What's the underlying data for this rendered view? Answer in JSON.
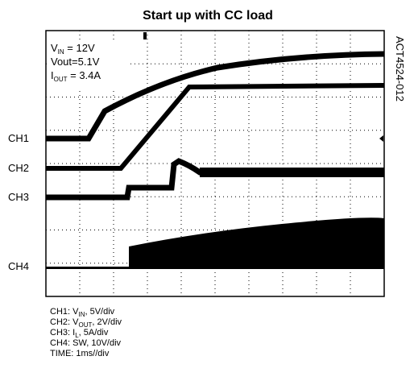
{
  "title": "Start up with CC load",
  "side_label": "ACT4524-012",
  "annotations": [
    {
      "prefix": "V",
      "sub": "IN",
      "suffix": " = 12V"
    },
    {
      "prefix": "Vout=5.1V"
    },
    {
      "prefix": "I",
      "sub": "OUT",
      "suffix": " = 3.4A"
    }
  ],
  "channel_labels": [
    "CH1",
    "CH2",
    "CH3",
    "CH4"
  ],
  "legend": [
    {
      "prefix": "CH1: V",
      "sub": "IN",
      "suffix": ", 5V/div"
    },
    {
      "prefix": "CH2: V",
      "sub": "OUT",
      "suffix": ", 2V/div"
    },
    {
      "prefix": "CH3: I",
      "sub": "L",
      "suffix": ", 5A/div"
    },
    {
      "prefix": "CH4: SW, 10V/div"
    },
    {
      "prefix": "TIME: 1ms//div"
    }
  ]
}
